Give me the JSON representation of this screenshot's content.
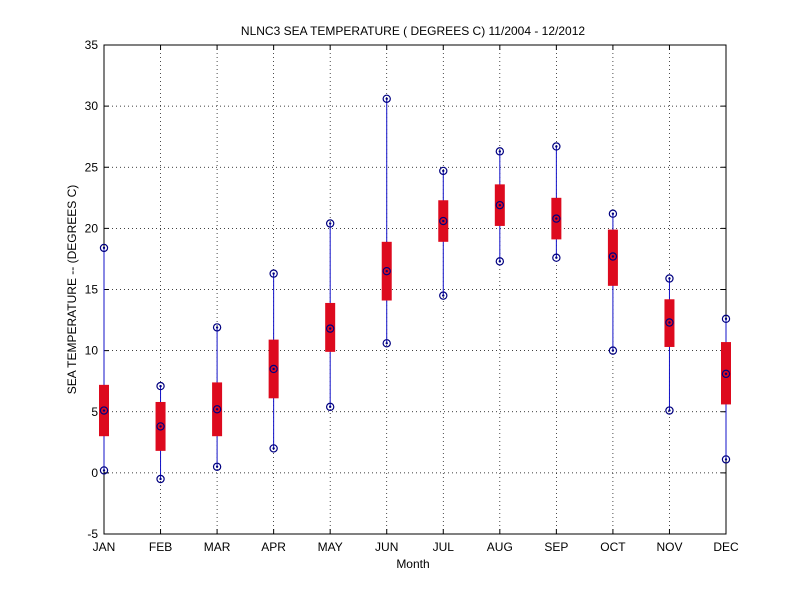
{
  "chart_data": {
    "type": "boxplot",
    "title": "NLNC3  SEA TEMPERATURE ( DEGREES C) 11/2004 - 12/2012",
    "xlabel": "Month",
    "ylabel": "SEA TEMPERATURE -- (DEGREES C)",
    "ylim": [
      -5,
      35
    ],
    "yticks": [
      -5,
      0,
      5,
      10,
      15,
      20,
      25,
      30,
      35
    ],
    "ytick_labels": [
      "-5",
      "0",
      "5",
      "10",
      "15",
      "20",
      "25",
      "30",
      "35"
    ],
    "grid": true,
    "categories": [
      "JAN",
      "FEB",
      "MAR",
      "APR",
      "MAY",
      "JUN",
      "JUL",
      "AUG",
      "SEP",
      "OCT",
      "NOV",
      "DEC"
    ],
    "min": [
      0.2,
      -0.5,
      0.5,
      2.0,
      5.4,
      10.6,
      14.5,
      17.3,
      17.6,
      10.0,
      5.1,
      1.1
    ],
    "q1": [
      3.0,
      1.8,
      3.0,
      6.1,
      9.9,
      14.1,
      18.9,
      20.2,
      19.1,
      15.3,
      10.3,
      5.6
    ],
    "median": [
      5.1,
      3.8,
      5.2,
      8.5,
      11.8,
      16.5,
      20.6,
      21.9,
      20.8,
      17.7,
      12.3,
      8.1
    ],
    "q3": [
      7.2,
      5.8,
      7.4,
      10.9,
      13.9,
      18.9,
      22.3,
      23.6,
      22.5,
      19.9,
      14.2,
      10.7
    ],
    "max": [
      18.4,
      7.1,
      11.9,
      16.3,
      20.4,
      30.6,
      24.7,
      26.3,
      26.7,
      21.2,
      15.9,
      12.6
    ],
    "colors": {
      "box": "#dd0a1e",
      "whisker": "#1010c8",
      "marker": "#000080",
      "grid": "#000000",
      "axis": "#000000"
    }
  }
}
